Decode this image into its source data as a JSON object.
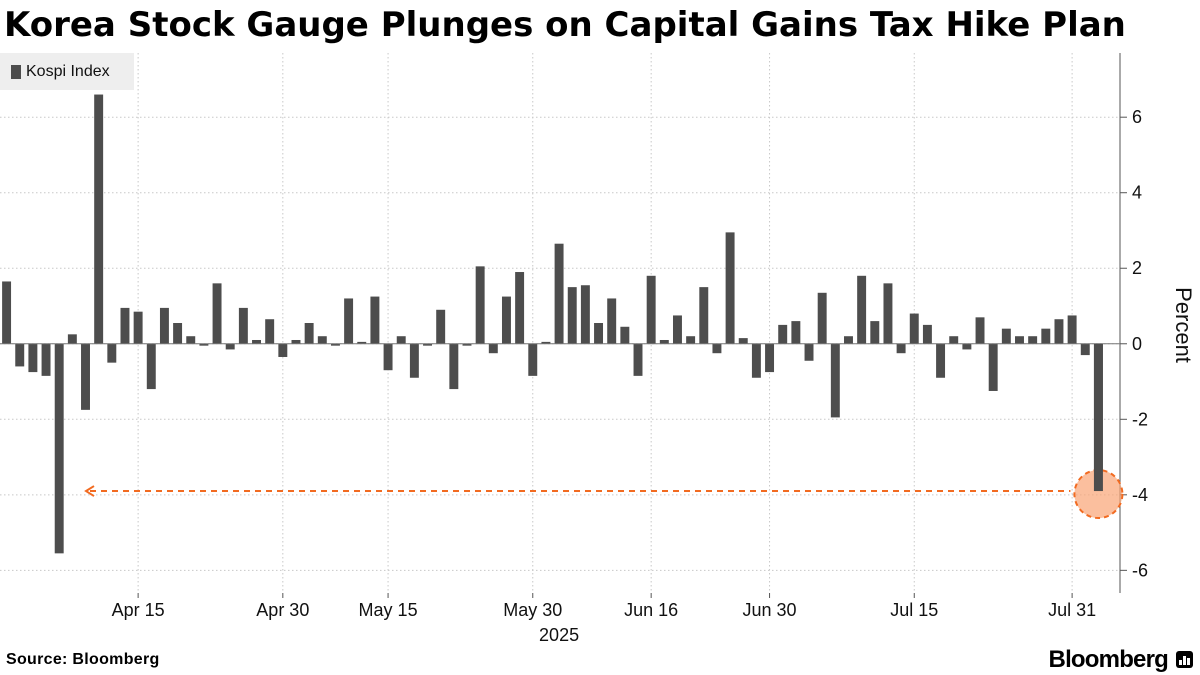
{
  "title": "Korea Stock Gauge Plunges on Capital Gains Tax Hike Plan",
  "legend": {
    "label": "Kospi Index",
    "color": "#4d4d4d"
  },
  "footer": {
    "source": "Source: Bloomberg",
    "brand": "Bloomberg"
  },
  "chart_data": {
    "type": "bar",
    "title": "Korea Stock Gauge Plunges on Capital Gains Tax Hike Plan",
    "ylabel": "Percent",
    "xlabel": "2025",
    "ylim": [
      -6.6,
      7.7
    ],
    "yticks": [
      6,
      4,
      2,
      0,
      -2,
      -4,
      -6
    ],
    "xticks": [
      {
        "label": "Apr 15",
        "index": 10
      },
      {
        "label": "Apr 30",
        "index": 21
      },
      {
        "label": "May 15",
        "index": 29
      },
      {
        "label": "May 30",
        "index": 40
      },
      {
        "label": "Jun 16",
        "index": 49
      },
      {
        "label": "Jun 30",
        "index": 58
      },
      {
        "label": "Jul 15",
        "index": 69
      },
      {
        "label": "Jul 31",
        "index": 81
      }
    ],
    "year_label": {
      "label": "2025",
      "index": 42
    },
    "bar_color": "#4d4d4d",
    "series": [
      {
        "name": "Kospi Index",
        "values": [
          1.65,
          -0.6,
          -0.75,
          -0.85,
          -5.55,
          0.25,
          -1.75,
          6.6,
          -0.5,
          0.95,
          0.85,
          -1.2,
          0.95,
          0.55,
          0.2,
          -0.05,
          1.6,
          -0.15,
          0.95,
          0.1,
          0.65,
          -0.35,
          0.1,
          0.55,
          0.2,
          -0.05,
          1.2,
          0.05,
          1.25,
          -0.7,
          0.2,
          -0.9,
          -0.05,
          0.9,
          -1.2,
          -0.05,
          2.05,
          -0.25,
          1.25,
          1.9,
          -0.85,
          0.05,
          2.65,
          1.5,
          1.55,
          0.55,
          1.2,
          0.45,
          -0.85,
          1.8,
          0.1,
          0.75,
          0.2,
          1.5,
          -0.25,
          2.95,
          0.15,
          -0.9,
          -0.75,
          0.5,
          0.6,
          -0.45,
          1.35,
          -1.95,
          0.2,
          1.8,
          0.6,
          1.6,
          -0.25,
          0.8,
          0.5,
          -0.9,
          0.2,
          -0.15,
          0.7,
          -1.25,
          0.4,
          0.2,
          0.2,
          0.4,
          0.65,
          0.75,
          -0.3,
          -3.9
        ]
      }
    ],
    "annotation": {
      "type": "reference-line",
      "value": -3.9,
      "color": "#f26b21",
      "marker": "circle-highlight-last-bar",
      "marker_color": "#f9a475"
    }
  }
}
